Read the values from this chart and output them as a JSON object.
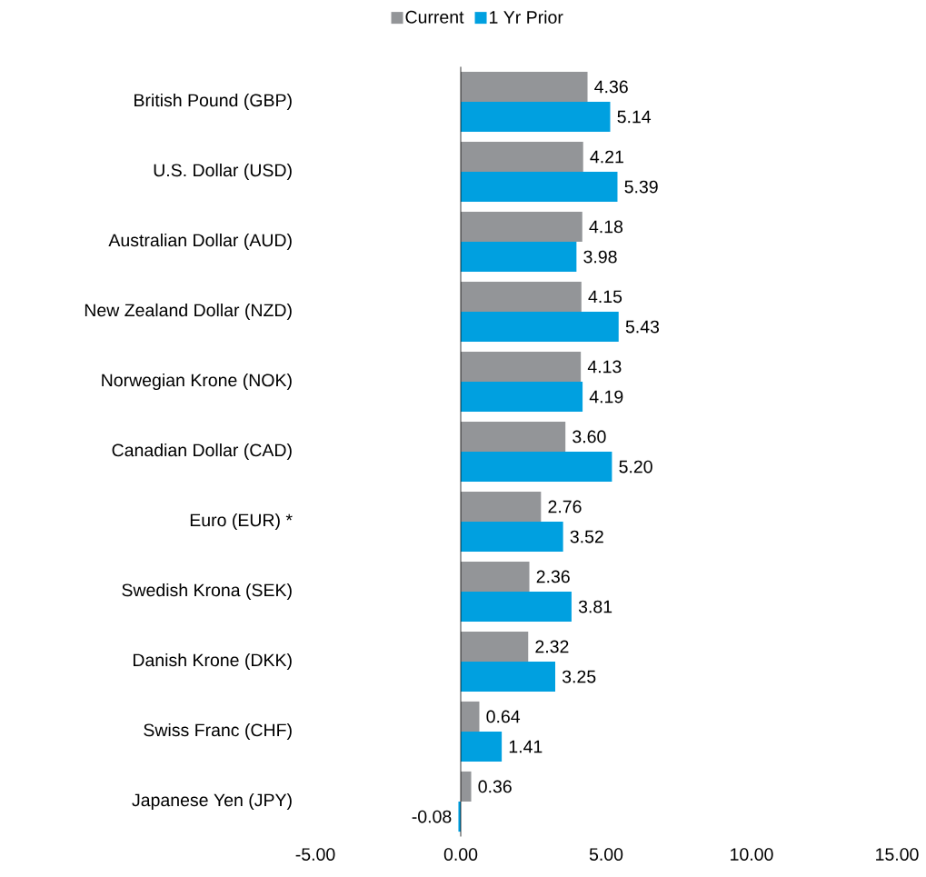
{
  "chart_data": {
    "type": "bar",
    "orientation": "horizontal",
    "legend": "top",
    "categories": [
      "British Pound (GBP)",
      "U.S. Dollar (USD)",
      "Australian Dollar (AUD)",
      "New Zealand Dollar (NZD)",
      "Norwegian Krone (NOK)",
      "Canadian Dollar (CAD)",
      "Euro (EUR) *",
      "Swedish Krona (SEK)",
      "Danish Krone (DKK)",
      "Swiss Franc (CHF)",
      "Japanese Yen (JPY)"
    ],
    "series": [
      {
        "name": "Current",
        "color": "#939598",
        "values": [
          4.36,
          4.21,
          4.18,
          4.15,
          4.13,
          3.6,
          2.76,
          2.36,
          2.32,
          0.64,
          0.36
        ],
        "value_labels": [
          "4.36",
          "4.21",
          "4.18",
          "4.15",
          "4.13",
          "3.60",
          "2.76",
          "2.36",
          "2.32",
          "0.64",
          "0.36"
        ]
      },
      {
        "name": "1 Yr Prior",
        "color": "#00a0e0",
        "values": [
          5.14,
          5.39,
          3.98,
          5.43,
          4.19,
          5.2,
          3.52,
          3.81,
          3.25,
          1.41,
          -0.08
        ],
        "value_labels": [
          "5.14",
          "5.39",
          "3.98",
          "5.43",
          "4.19",
          "5.20",
          "3.52",
          "3.81",
          "3.25",
          "1.41",
          "-0.08"
        ]
      }
    ],
    "xlim": [
      -5,
      15
    ],
    "xticks": [
      {
        "value": -5,
        "label": "-5.00"
      },
      {
        "value": 0,
        "label": "0.00"
      },
      {
        "value": 5,
        "label": "5.00"
      },
      {
        "value": 10,
        "label": "10.00"
      },
      {
        "value": 15,
        "label": "15.00"
      }
    ]
  }
}
